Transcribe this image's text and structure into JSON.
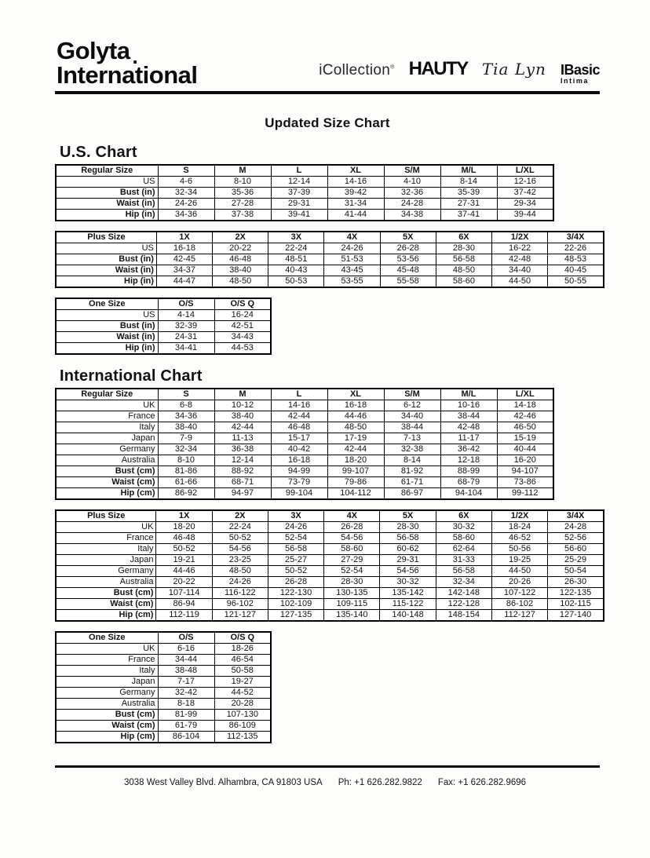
{
  "colors": {
    "ink": "#121212",
    "table_border": "#000000",
    "page_bg": "#fdfdfb"
  },
  "header": {
    "logo_line1": "Golyta",
    "logo_dot": ".",
    "logo_line2": "International",
    "brands": {
      "icollection": "iCollection",
      "icollection_mark": "®",
      "hauty": "HAUTY",
      "tia_lyn": "Tia Lyn",
      "ibasic_line1": "IBasic",
      "ibasic_line2": "Intima"
    }
  },
  "title": "Updated Size Chart",
  "sections": [
    {
      "heading": "U.S. Chart",
      "tables": [
        {
          "corner": "Regular Size",
          "columns": [
            "S",
            "M",
            "L",
            "XL",
            "S/M",
            "M/L",
            "L/XL"
          ],
          "rows": [
            {
              "label": "US",
              "bold": false,
              "values": [
                "4-6",
                "8-10",
                "12-14",
                "14-16",
                "4-10",
                "8-14",
                "12-16"
              ]
            },
            {
              "label": "Bust (in)",
              "bold": true,
              "values": [
                "32-34",
                "35-36",
                "37-39",
                "39-42",
                "32-36",
                "35-39",
                "37-42"
              ]
            },
            {
              "label": "Waist (in)",
              "bold": true,
              "values": [
                "24-26",
                "27-28",
                "29-31",
                "31-34",
                "24-28",
                "27-31",
                "29-34"
              ]
            },
            {
              "label": "Hip (in)",
              "bold": true,
              "values": [
                "34-36",
                "37-38",
                "39-41",
                "41-44",
                "34-38",
                "37-41",
                "39-44"
              ]
            }
          ]
        },
        {
          "corner": "Plus Size",
          "columns": [
            "1X",
            "2X",
            "3X",
            "4X",
            "5X",
            "6X",
            "1/2X",
            "3/4X"
          ],
          "rows": [
            {
              "label": "US",
              "bold": false,
              "values": [
                "16-18",
                "20-22",
                "22-24",
                "24-26",
                "26-28",
                "28-30",
                "16-22",
                "22-26"
              ]
            },
            {
              "label": "Bust (in)",
              "bold": true,
              "values": [
                "42-45",
                "46-48",
                "48-51",
                "51-53",
                "53-56",
                "56-58",
                "42-48",
                "48-53"
              ]
            },
            {
              "label": "Waist (in)",
              "bold": true,
              "values": [
                "34-37",
                "38-40",
                "40-43",
                "43-45",
                "45-48",
                "48-50",
                "34-40",
                "40-45"
              ]
            },
            {
              "label": "Hip (in)",
              "bold": true,
              "values": [
                "44-47",
                "48-50",
                "50-53",
                "53-55",
                "55-58",
                "58-60",
                "44-50",
                "50-55"
              ]
            }
          ]
        },
        {
          "corner": "One Size",
          "columns": [
            "O/S",
            "O/S Q"
          ],
          "rows": [
            {
              "label": "US",
              "bold": false,
              "values": [
                "4-14",
                "16-24"
              ]
            },
            {
              "label": "Bust (in)",
              "bold": true,
              "values": [
                "32-39",
                "42-51"
              ]
            },
            {
              "label": "Waist (in)",
              "bold": true,
              "values": [
                "24-31",
                "34-43"
              ]
            },
            {
              "label": "Hip (in)",
              "bold": true,
              "values": [
                "34-41",
                "44-53"
              ]
            }
          ]
        }
      ]
    },
    {
      "heading": "International Chart",
      "tables": [
        {
          "corner": "Regular Size",
          "columns": [
            "S",
            "M",
            "L",
            "XL",
            "S/M",
            "M/L",
            "L/XL"
          ],
          "rows": [
            {
              "label": "UK",
              "bold": false,
              "values": [
                "6-8",
                "10-12",
                "14-16",
                "16-18",
                "6-12",
                "10-16",
                "14-18"
              ]
            },
            {
              "label": "France",
              "bold": false,
              "values": [
                "34-36",
                "38-40",
                "42-44",
                "44-46",
                "34-40",
                "38-44",
                "42-46"
              ]
            },
            {
              "label": "Italy",
              "bold": false,
              "values": [
                "38-40",
                "42-44",
                "46-48",
                "48-50",
                "38-44",
                "42-48",
                "46-50"
              ]
            },
            {
              "label": "Japan",
              "bold": false,
              "values": [
                "7-9",
                "11-13",
                "15-17",
                "17-19",
                "7-13",
                "11-17",
                "15-19"
              ]
            },
            {
              "label": "Germany",
              "bold": false,
              "values": [
                "32-34",
                "36-38",
                "40-42",
                "42-44",
                "32-38",
                "36-42",
                "40-44"
              ]
            },
            {
              "label": "Australia",
              "bold": false,
              "values": [
                "8-10",
                "12-14",
                "16-18",
                "18-20",
                "8-14",
                "12-18",
                "16-20"
              ]
            },
            {
              "label": "Bust (cm)",
              "bold": true,
              "values": [
                "81-86",
                "88-92",
                "94-99",
                "99-107",
                "81-92",
                "88-99",
                "94-107"
              ]
            },
            {
              "label": "Waist (cm)",
              "bold": true,
              "values": [
                "61-66",
                "68-71",
                "73-79",
                "79-86",
                "61-71",
                "68-79",
                "73-86"
              ]
            },
            {
              "label": "Hip (cm)",
              "bold": true,
              "values": [
                "86-92",
                "94-97",
                "99-104",
                "104-112",
                "86-97",
                "94-104",
                "99-112"
              ]
            }
          ]
        },
        {
          "corner": "Plus Size",
          "columns": [
            "1X",
            "2X",
            "3X",
            "4X",
            "5X",
            "6X",
            "1/2X",
            "3/4X"
          ],
          "rows": [
            {
              "label": "UK",
              "bold": false,
              "values": [
                "18-20",
                "22-24",
                "24-26",
                "26-28",
                "28-30",
                "30-32",
                "18-24",
                "24-28"
              ]
            },
            {
              "label": "France",
              "bold": false,
              "values": [
                "46-48",
                "50-52",
                "52-54",
                "54-56",
                "56-58",
                "58-60",
                "46-52",
                "52-56"
              ]
            },
            {
              "label": "Italy",
              "bold": false,
              "values": [
                "50-52",
                "54-56",
                "56-58",
                "58-60",
                "60-62",
                "62-64",
                "50-56",
                "56-60"
              ]
            },
            {
              "label": "Japan",
              "bold": false,
              "values": [
                "19-21",
                "23-25",
                "25-27",
                "27-29",
                "29-31",
                "31-33",
                "19-25",
                "25-29"
              ]
            },
            {
              "label": "Germany",
              "bold": false,
              "values": [
                "44-46",
                "48-50",
                "50-52",
                "52-54",
                "54-56",
                "56-58",
                "44-50",
                "50-54"
              ]
            },
            {
              "label": "Australia",
              "bold": false,
              "values": [
                "20-22",
                "24-26",
                "26-28",
                "28-30",
                "30-32",
                "32-34",
                "20-26",
                "26-30"
              ]
            },
            {
              "label": "Bust (cm)",
              "bold": true,
              "values": [
                "107-114",
                "116-122",
                "122-130",
                "130-135",
                "135-142",
                "142-148",
                "107-122",
                "122-135"
              ]
            },
            {
              "label": "Waist (cm)",
              "bold": true,
              "values": [
                "86-94",
                "96-102",
                "102-109",
                "109-115",
                "115-122",
                "122-128",
                "86-102",
                "102-115"
              ]
            },
            {
              "label": "Hip (cm)",
              "bold": true,
              "values": [
                "112-119",
                "121-127",
                "127-135",
                "135-140",
                "140-148",
                "148-154",
                "112-127",
                "127-140"
              ]
            }
          ]
        },
        {
          "corner": "One Size",
          "columns": [
            "O/S",
            "O/S Q"
          ],
          "rows": [
            {
              "label": "UK",
              "bold": false,
              "values": [
                "6-16",
                "18-26"
              ]
            },
            {
              "label": "France",
              "bold": false,
              "values": [
                "34-44",
                "46-54"
              ]
            },
            {
              "label": "Italy",
              "bold": false,
              "values": [
                "38-48",
                "50-58"
              ]
            },
            {
              "label": "Japan",
              "bold": false,
              "values": [
                "7-17",
                "19-27"
              ]
            },
            {
              "label": "Germany",
              "bold": false,
              "values": [
                "32-42",
                "44-52"
              ]
            },
            {
              "label": "Australia",
              "bold": false,
              "values": [
                "8-18",
                "20-28"
              ]
            },
            {
              "label": "Bust (cm)",
              "bold": true,
              "values": [
                "81-99",
                "107-130"
              ]
            },
            {
              "label": "Waist (cm)",
              "bold": true,
              "values": [
                "61-79",
                "86-109"
              ]
            },
            {
              "label": "Hip (cm)",
              "bold": true,
              "values": [
                "86-104",
                "112-135"
              ]
            }
          ]
        }
      ]
    }
  ],
  "footer": {
    "address": "3038 West Valley Blvd. Alhambra, CA 91803 USA",
    "phone": "Ph: +1 626.282.9822",
    "fax": "Fax: +1 626.282.9696"
  }
}
